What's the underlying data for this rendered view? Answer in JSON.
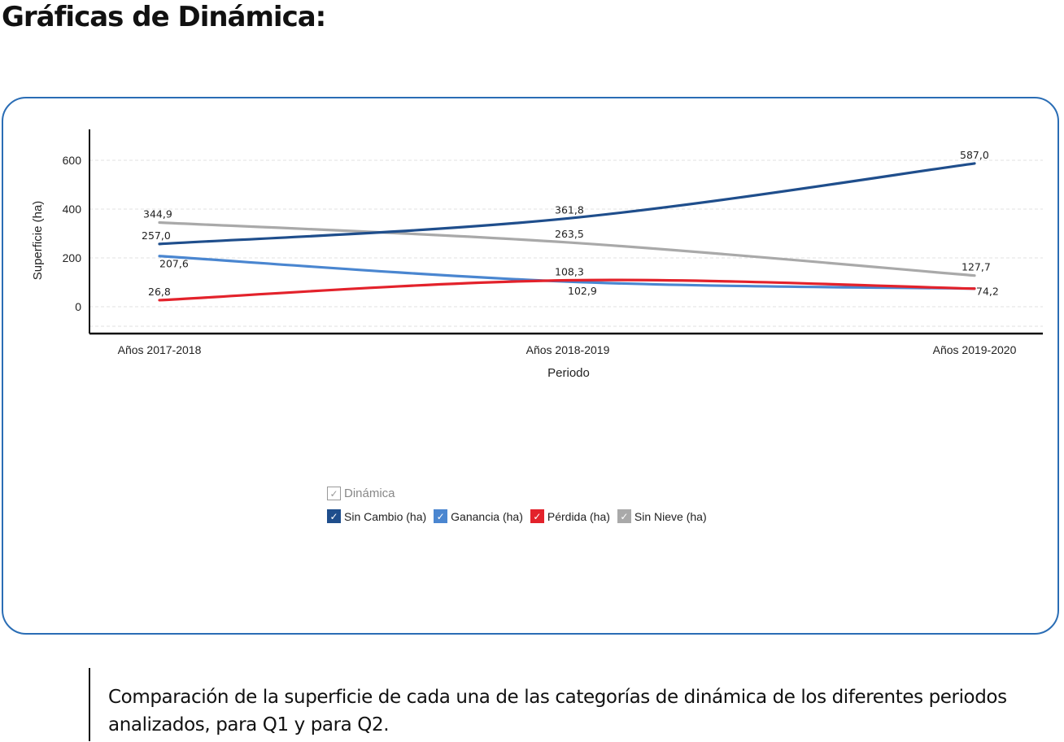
{
  "page": {
    "title": "Gráficas de Dinámica:",
    "caption": "Comparación de la superficie de cada una de las categorías de dinámica de los diferentes periodos analizados, para Q1 y para Q2."
  },
  "chart_data": {
    "type": "line",
    "categories": [
      "Años 2017-2018",
      "Años 2018-2019",
      "Años 2019-2020"
    ],
    "xlabel": "Periodo",
    "ylabel": "Superficie (ha)",
    "ylim": [
      -110,
      720
    ],
    "yticks": [
      0,
      200,
      400,
      600
    ],
    "grid": "horizontal dashed",
    "legend": {
      "title": "Dinámica",
      "placement": "bottom-center"
    },
    "series": [
      {
        "name": "Sin Cambio (ha)",
        "color": "#1f4e8c",
        "values": [
          257.0,
          361.8,
          587.0
        ],
        "labels": [
          "257,0",
          "361,8",
          "587,0"
        ]
      },
      {
        "name": "Ganancia (ha)",
        "color": "#4a86d0",
        "values": [
          207.6,
          102.9,
          74.2
        ],
        "labels": [
          "207,6",
          "102,9",
          ""
        ]
      },
      {
        "name": "Pérdida (ha)",
        "color": "#e3222b",
        "values": [
          26.8,
          108.3,
          74.2
        ],
        "labels": [
          "26,8",
          "108,3",
          "74,2"
        ]
      },
      {
        "name": "Sin Nieve (ha)",
        "color": "#a9a9a9",
        "values": [
          344.9,
          263.5,
          127.7
        ],
        "labels": [
          "344,9",
          "263,5",
          "127,7"
        ]
      }
    ]
  }
}
